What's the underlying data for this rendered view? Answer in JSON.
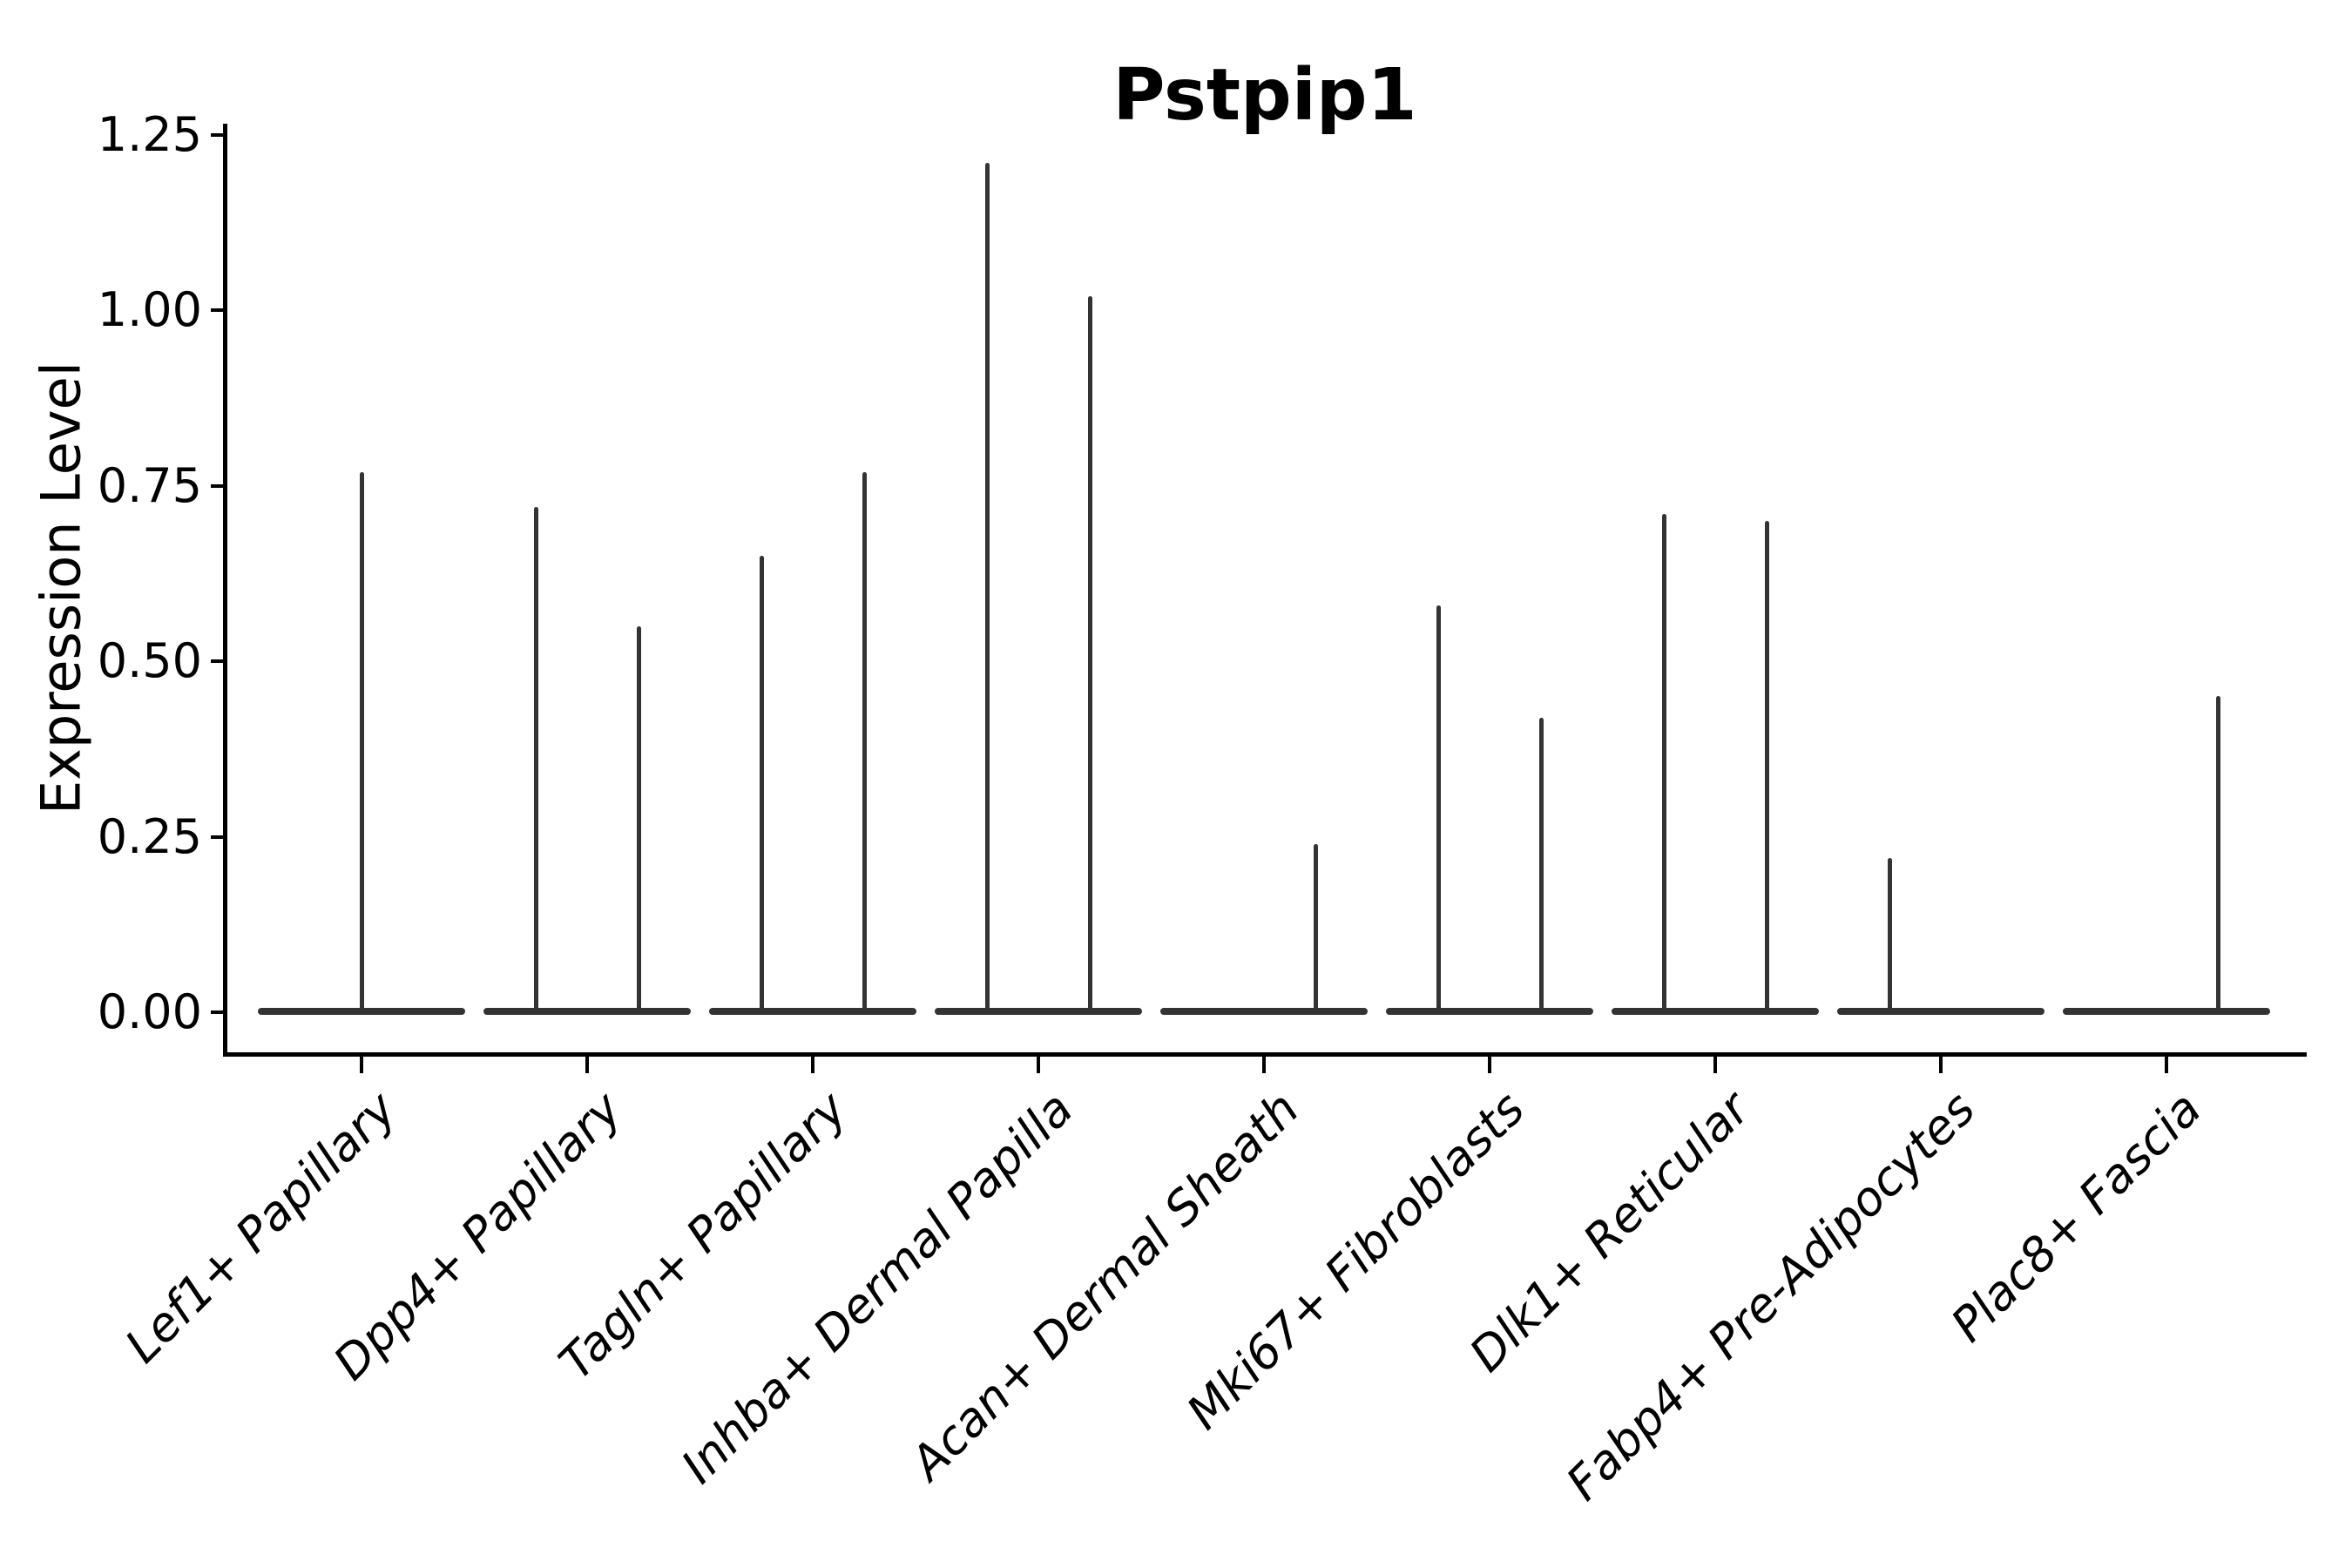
{
  "title": "Pstpip1",
  "ylabel": "Expression Level",
  "chart_data": {
    "type": "violin",
    "title": "Pstpip1",
    "xlabel": "",
    "ylabel": "Expression Level",
    "ylim": [
      -0.06,
      1.26
    ],
    "y_ticks": [
      {
        "value": 0.0,
        "label": "0.00"
      },
      {
        "value": 0.25,
        "label": "0.25"
      },
      {
        "value": 0.5,
        "label": "0.50"
      },
      {
        "value": 0.75,
        "label": "0.75"
      },
      {
        "value": 1.0,
        "label": "1.00"
      },
      {
        "value": 1.25,
        "label": "1.25"
      }
    ],
    "grid": false,
    "legend_position": "none",
    "x_tick_rotation_deg": 45,
    "x_tick_style": "italic",
    "categories": [
      "Lef1+ Papillary",
      "Dpp4+ Papillary",
      "Tagln+ Papillary",
      "Inhba+ Dermal Papilla",
      "Acan+ Dermal Sheath",
      "Mki67+ Fibroblasts",
      "Dlk1+ Reticular",
      "Fabp4+ Pre-Adipocytes",
      "Plac8+ Fascia"
    ],
    "description": "Width-collapsed violins: each category shows a flat density base at expression 0 spanning the category width, plus thin vertical density spikes rising to the maximum expression value. Categories with two dodged sub-violins show spikes at left/right offsets; a missing spike means that sub-group has no cells above 0.",
    "violins": [
      {
        "category": "Lef1+ Papillary",
        "base_at_zero": true,
        "spikes": [
          {
            "pos": "center",
            "max": 0.77
          }
        ]
      },
      {
        "category": "Dpp4+ Papillary",
        "base_at_zero": true,
        "spikes": [
          {
            "pos": "left",
            "max": 0.72
          },
          {
            "pos": "right",
            "max": 0.55
          }
        ]
      },
      {
        "category": "Tagln+ Papillary",
        "base_at_zero": true,
        "spikes": [
          {
            "pos": "left",
            "max": 0.65
          },
          {
            "pos": "right",
            "max": 0.77
          }
        ]
      },
      {
        "category": "Inhba+ Dermal Papilla",
        "base_at_zero": true,
        "spikes": [
          {
            "pos": "left",
            "max": 1.21
          },
          {
            "pos": "right",
            "max": 1.02
          }
        ]
      },
      {
        "category": "Acan+ Dermal Sheath",
        "base_at_zero": true,
        "spikes": [
          {
            "pos": "right",
            "max": 0.24
          }
        ]
      },
      {
        "category": "Mki67+ Fibroblasts",
        "base_at_zero": true,
        "spikes": [
          {
            "pos": "left",
            "max": 0.58
          },
          {
            "pos": "right",
            "max": 0.42
          }
        ]
      },
      {
        "category": "Dlk1+ Reticular",
        "base_at_zero": true,
        "spikes": [
          {
            "pos": "left",
            "max": 0.71
          },
          {
            "pos": "right",
            "max": 0.7
          }
        ]
      },
      {
        "category": "Fabp4+ Pre-Adipocytes",
        "base_at_zero": true,
        "spikes": [
          {
            "pos": "left",
            "max": 0.22
          }
        ]
      },
      {
        "category": "Plac8+ Fascia",
        "base_at_zero": true,
        "spikes": [
          {
            "pos": "right",
            "max": 0.45
          }
        ]
      }
    ],
    "colors": {
      "background": "#ffffff",
      "axis": "#000000",
      "text": "#000000",
      "violin_stroke": "#333333"
    }
  }
}
